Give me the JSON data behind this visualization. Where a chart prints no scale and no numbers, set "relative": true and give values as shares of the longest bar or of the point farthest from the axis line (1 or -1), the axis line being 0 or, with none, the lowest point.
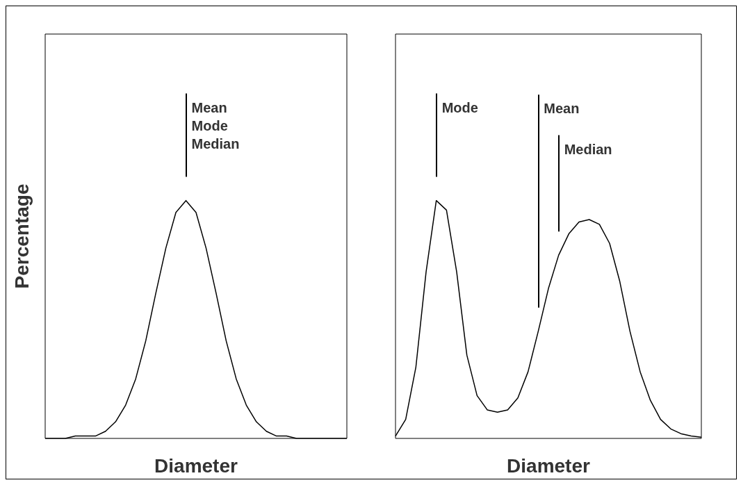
{
  "chart_data": [
    {
      "type": "line",
      "relative": true,
      "xlabel": "Diameter",
      "ylabel": "Percentage",
      "marker": "none",
      "line_style": "solid",
      "categories": [
        null,
        null,
        null,
        null,
        null,
        null,
        null,
        null,
        null,
        null,
        null,
        null,
        null,
        null,
        null,
        null,
        null,
        null,
        null,
        null,
        null,
        null,
        null,
        null,
        null,
        null,
        null,
        null,
        null,
        null,
        null
      ],
      "series": [
        {
          "color": "#000000",
          "values": [
            0,
            0,
            0,
            0.01,
            0.01,
            0.01,
            0.03,
            0.07,
            0.14,
            0.25,
            0.41,
            0.61,
            0.8,
            0.95,
            1,
            0.95,
            0.8,
            0.61,
            0.41,
            0.25,
            0.14,
            0.07,
            0.03,
            0.01,
            0.01,
            0,
            0,
            0,
            0,
            0,
            0
          ]
        }
      ],
      "annotations": [
        "Mean\nMode\nMedian"
      ]
    },
    {
      "type": "line",
      "relative": true,
      "xlabel": "Diameter",
      "marker": "none",
      "line_style": "solid",
      "categories": [
        null,
        null,
        null,
        null,
        null,
        null,
        null,
        null,
        null,
        null,
        null,
        null,
        null,
        null,
        null,
        null,
        null,
        null,
        null,
        null,
        null,
        null,
        null,
        null,
        null,
        null,
        null,
        null,
        null,
        null,
        null
      ],
      "series": [
        {
          "color": "#000000",
          "values": [
            0.01,
            0.08,
            0.3,
            0.7,
            1,
            0.96,
            0.7,
            0.35,
            0.18,
            0.12,
            0.11,
            0.12,
            0.17,
            0.28,
            0.45,
            0.63,
            0.77,
            0.86,
            0.91,
            0.92,
            0.9,
            0.82,
            0.66,
            0.45,
            0.28,
            0.16,
            0.08,
            0.04,
            0.02,
            0.01,
            0.005
          ]
        }
      ],
      "annotations": [
        "Mode",
        "Mean",
        "Median"
      ]
    }
  ]
}
